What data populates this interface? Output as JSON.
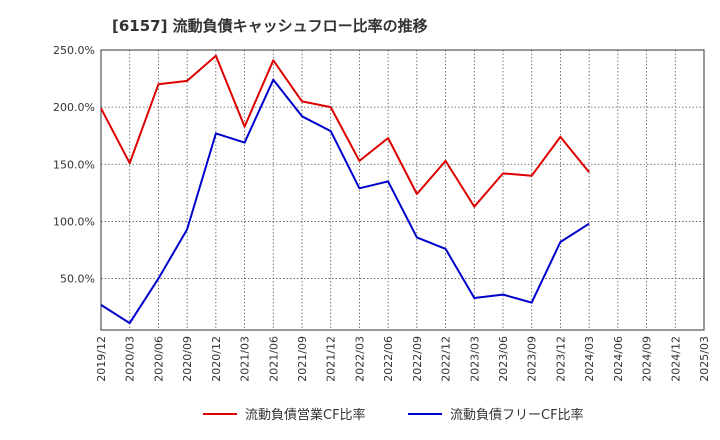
{
  "chart_data": {
    "type": "line",
    "title": "[6157]  流動負債キャッシュフロー比率の推移",
    "xlabel": "",
    "ylabel": "",
    "x_ticks": [
      "2019/12",
      "2020/03",
      "2020/06",
      "2020/09",
      "2020/12",
      "2021/03",
      "2021/06",
      "2021/09",
      "2021/12",
      "2022/03",
      "2022/06",
      "2022/09",
      "2022/12",
      "2023/03",
      "2023/06",
      "2023/09",
      "2023/12",
      "2024/03",
      "2024/06",
      "2024/09",
      "2024/12",
      "2025/03"
    ],
    "y_ticks": [
      50,
      100,
      150,
      200,
      250
    ],
    "y_tick_labels": [
      "50.0%",
      "100.0%",
      "150.0%",
      "200.0%",
      "250.0%"
    ],
    "ylim": [
      5,
      250
    ],
    "grid": true,
    "legend_position": "bottom",
    "series": [
      {
        "name": "流動負債営業CF比率",
        "color": "#dd0000",
        "points": [
          [
            "2019/12",
            199
          ],
          [
            "2020/03",
            151
          ],
          [
            "2020/06",
            220
          ],
          [
            "2020/09",
            223
          ],
          [
            "2020/12",
            245
          ],
          [
            "2021/03",
            183
          ],
          [
            "2021/06",
            241
          ],
          [
            "2021/09",
            205
          ],
          [
            "2021/12",
            200
          ],
          [
            "2022/03",
            153
          ],
          [
            "2022/06",
            173
          ],
          [
            "2022/09",
            124
          ],
          [
            "2022/12",
            153
          ],
          [
            "2023/03",
            113
          ],
          [
            "2023/06",
            142
          ],
          [
            "2023/09",
            140
          ],
          [
            "2023/12",
            174
          ],
          [
            "2024/03",
            143
          ]
        ]
      },
      {
        "name": "流動負債フリーCF比率",
        "color": "#0000cc",
        "points": [
          [
            "2019/12",
            27
          ],
          [
            "2020/03",
            11
          ],
          [
            "2020/06",
            50
          ],
          [
            "2020/09",
            93
          ],
          [
            "2020/12",
            177
          ],
          [
            "2021/03",
            169
          ],
          [
            "2021/06",
            224
          ],
          [
            "2021/09",
            192
          ],
          [
            "2021/12",
            179
          ],
          [
            "2022/03",
            129
          ],
          [
            "2022/06",
            135
          ],
          [
            "2022/09",
            86
          ],
          [
            "2022/12",
            76
          ],
          [
            "2023/03",
            33
          ],
          [
            "2023/06",
            36
          ],
          [
            "2023/09",
            29
          ],
          [
            "2023/12",
            82
          ],
          [
            "2024/03",
            98
          ]
        ]
      }
    ]
  }
}
